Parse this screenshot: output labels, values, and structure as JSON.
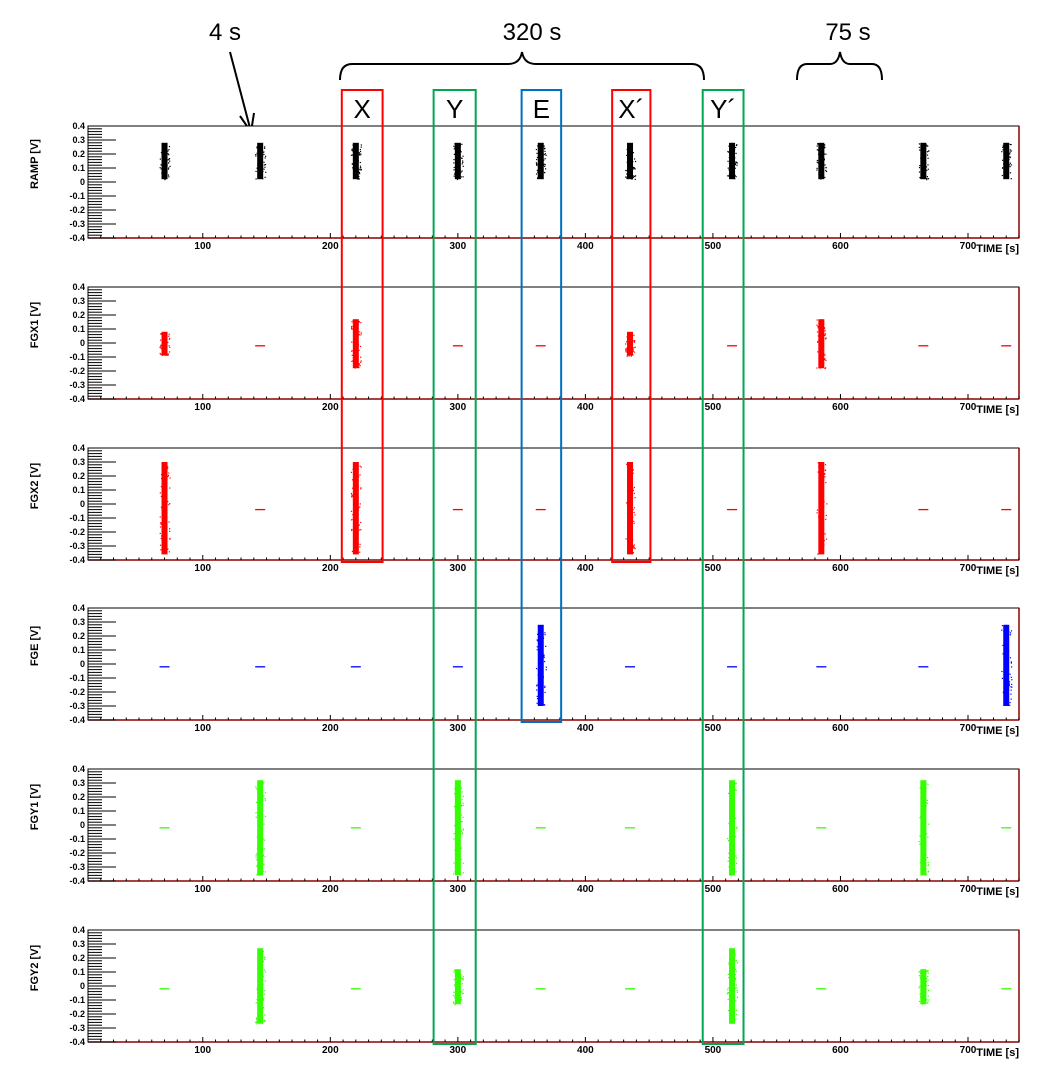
{
  "annotations": {
    "arrow_label": "4 s",
    "brace_long_label": "320 s",
    "brace_short_label": "75 s"
  },
  "boxes": [
    {
      "label": "X",
      "color": "#ff0000",
      "x0": 209,
      "x1": 241,
      "panels": [
        0,
        2
      ]
    },
    {
      "label": "Y",
      "color": "#00a651",
      "x0": 281,
      "x1": 314,
      "panels": [
        0,
        5
      ]
    },
    {
      "label": "E",
      "color": "#0070c0",
      "x0": 350,
      "x1": 381,
      "panels": [
        0,
        3
      ]
    },
    {
      "label": "X´",
      "color": "#ff0000",
      "x0": 421,
      "x1": 451,
      "panels": [
        0,
        2
      ]
    },
    {
      "label": "Y´",
      "color": "#00a651",
      "x0": 492,
      "x1": 524,
      "panels": [
        0,
        5
      ]
    }
  ],
  "chart_data": [
    {
      "type": "scatter",
      "ylabel": "RAMP [V]",
      "xlabel": "TIME [s]",
      "xlim": [
        10,
        740
      ],
      "ylim": [
        -0.4,
        0.4
      ],
      "grid": false,
      "xticks": [
        100,
        200,
        300,
        400,
        500,
        600,
        700
      ],
      "yticks": [
        0.4,
        0.3,
        0.2,
        0.1,
        0,
        -0.1,
        -0.2,
        -0.3,
        -0.4
      ],
      "color": "#000000",
      "bursts": [
        {
          "t": 70,
          "ymin": 0.02,
          "ymax": 0.28
        },
        {
          "t": 145,
          "ymin": 0.02,
          "ymax": 0.28
        },
        {
          "t": 220,
          "ymin": 0.02,
          "ymax": 0.28
        },
        {
          "t": 300,
          "ymin": 0.02,
          "ymax": 0.28
        },
        {
          "t": 365,
          "ymin": 0.02,
          "ymax": 0.28
        },
        {
          "t": 435,
          "ymin": 0.02,
          "ymax": 0.28
        },
        {
          "t": 515,
          "ymin": 0.02,
          "ymax": 0.28
        },
        {
          "t": 585,
          "ymin": 0.02,
          "ymax": 0.28
        },
        {
          "t": 665,
          "ymin": 0.02,
          "ymax": 0.28
        },
        {
          "t": 730,
          "ymin": 0.02,
          "ymax": 0.28
        }
      ]
    },
    {
      "type": "scatter",
      "ylabel": "FGX1 [V]",
      "xlabel": "TIME [s]",
      "xlim": [
        10,
        740
      ],
      "ylim": [
        -0.4,
        0.4
      ],
      "grid": false,
      "xticks": [
        100,
        200,
        300,
        400,
        500,
        600,
        700
      ],
      "yticks": [
        0.4,
        0.3,
        0.2,
        0.1,
        0,
        -0.1,
        -0.2,
        -0.3,
        -0.4
      ],
      "color": "#ff0000",
      "bursts": [
        {
          "t": 70,
          "ymin": -0.09,
          "ymax": 0.08
        },
        {
          "t": 145,
          "ymin": -0.02,
          "ymax": -0.02
        },
        {
          "t": 220,
          "ymin": -0.18,
          "ymax": 0.17
        },
        {
          "t": 300,
          "ymin": -0.02,
          "ymax": -0.02
        },
        {
          "t": 365,
          "ymin": -0.02,
          "ymax": -0.02
        },
        {
          "t": 435,
          "ymin": -0.09,
          "ymax": 0.08
        },
        {
          "t": 515,
          "ymin": -0.02,
          "ymax": -0.02
        },
        {
          "t": 585,
          "ymin": -0.18,
          "ymax": 0.17
        },
        {
          "t": 665,
          "ymin": -0.02,
          "ymax": -0.02
        },
        {
          "t": 730,
          "ymin": -0.02,
          "ymax": -0.02
        }
      ]
    },
    {
      "type": "scatter",
      "ylabel": "FGX2 [V]",
      "xlabel": "TIME [s]",
      "xlim": [
        10,
        740
      ],
      "ylim": [
        -0.4,
        0.4
      ],
      "grid": false,
      "xticks": [
        100,
        200,
        300,
        400,
        500,
        600,
        700
      ],
      "yticks": [
        0.4,
        0.3,
        0.2,
        0.1,
        0,
        -0.1,
        -0.2,
        -0.3,
        -0.4
      ],
      "color": "#ff0000",
      "bursts": [
        {
          "t": 70,
          "ymin": -0.36,
          "ymax": 0.3
        },
        {
          "t": 145,
          "ymin": -0.04,
          "ymax": -0.04
        },
        {
          "t": 220,
          "ymin": -0.36,
          "ymax": 0.3
        },
        {
          "t": 300,
          "ymin": -0.04,
          "ymax": -0.04
        },
        {
          "t": 365,
          "ymin": -0.04,
          "ymax": -0.04
        },
        {
          "t": 435,
          "ymin": -0.36,
          "ymax": 0.3
        },
        {
          "t": 515,
          "ymin": -0.04,
          "ymax": -0.04
        },
        {
          "t": 585,
          "ymin": -0.36,
          "ymax": 0.3
        },
        {
          "t": 665,
          "ymin": -0.04,
          "ymax": -0.04
        },
        {
          "t": 730,
          "ymin": -0.04,
          "ymax": -0.04
        }
      ]
    },
    {
      "type": "scatter",
      "ylabel": "FGE [V]",
      "xlabel": "TIME [s]",
      "xlim": [
        10,
        740
      ],
      "ylim": [
        -0.4,
        0.4
      ],
      "grid": false,
      "xticks": [
        100,
        200,
        300,
        400,
        500,
        600,
        700
      ],
      "yticks": [
        0.4,
        0.3,
        0.2,
        0.1,
        0,
        -0.1,
        -0.2,
        -0.3,
        -0.4
      ],
      "color": "#0000ff",
      "bursts": [
        {
          "t": 70,
          "ymin": -0.02,
          "ymax": -0.02
        },
        {
          "t": 145,
          "ymin": -0.02,
          "ymax": -0.02
        },
        {
          "t": 220,
          "ymin": -0.02,
          "ymax": -0.02
        },
        {
          "t": 300,
          "ymin": -0.02,
          "ymax": -0.02
        },
        {
          "t": 365,
          "ymin": -0.3,
          "ymax": 0.28
        },
        {
          "t": 435,
          "ymin": -0.02,
          "ymax": -0.02
        },
        {
          "t": 515,
          "ymin": -0.02,
          "ymax": -0.02
        },
        {
          "t": 585,
          "ymin": -0.02,
          "ymax": -0.02
        },
        {
          "t": 665,
          "ymin": -0.02,
          "ymax": -0.02
        },
        {
          "t": 730,
          "ymin": -0.3,
          "ymax": 0.28
        }
      ]
    },
    {
      "type": "scatter",
      "ylabel": "FGY1 [V]",
      "xlabel": "TIME [s]",
      "xlim": [
        10,
        740
      ],
      "ylim": [
        -0.4,
        0.4
      ],
      "grid": false,
      "xticks": [
        100,
        200,
        300,
        400,
        500,
        600,
        700
      ],
      "yticks": [
        0.4,
        0.3,
        0.2,
        0.1,
        0,
        -0.1,
        -0.2,
        -0.3,
        -0.4
      ],
      "color": "#33ff00",
      "bursts": [
        {
          "t": 70,
          "ymin": -0.02,
          "ymax": -0.02
        },
        {
          "t": 145,
          "ymin": -0.36,
          "ymax": 0.32
        },
        {
          "t": 220,
          "ymin": -0.02,
          "ymax": -0.02
        },
        {
          "t": 300,
          "ymin": -0.36,
          "ymax": 0.32
        },
        {
          "t": 365,
          "ymin": -0.02,
          "ymax": -0.02
        },
        {
          "t": 435,
          "ymin": -0.02,
          "ymax": -0.02
        },
        {
          "t": 515,
          "ymin": -0.36,
          "ymax": 0.32
        },
        {
          "t": 585,
          "ymin": -0.02,
          "ymax": -0.02
        },
        {
          "t": 665,
          "ymin": -0.36,
          "ymax": 0.32
        },
        {
          "t": 730,
          "ymin": -0.02,
          "ymax": -0.02
        }
      ]
    },
    {
      "type": "scatter",
      "ylabel": "FGY2 [V]",
      "xlabel": "TIME [s]",
      "xlim": [
        10,
        740
      ],
      "ylim": [
        -0.4,
        0.4
      ],
      "grid": false,
      "xticks": [
        100,
        200,
        300,
        400,
        500,
        600,
        700
      ],
      "yticks": [
        0.4,
        0.3,
        0.2,
        0.1,
        0,
        -0.1,
        -0.2,
        -0.3,
        -0.4
      ],
      "color": "#33ff00",
      "bursts": [
        {
          "t": 70,
          "ymin": -0.02,
          "ymax": -0.02
        },
        {
          "t": 145,
          "ymin": -0.27,
          "ymax": 0.27
        },
        {
          "t": 220,
          "ymin": -0.02,
          "ymax": -0.02
        },
        {
          "t": 300,
          "ymin": -0.13,
          "ymax": 0.12
        },
        {
          "t": 365,
          "ymin": -0.02,
          "ymax": -0.02
        },
        {
          "t": 435,
          "ymin": -0.02,
          "ymax": -0.02
        },
        {
          "t": 515,
          "ymin": -0.27,
          "ymax": 0.27
        },
        {
          "t": 585,
          "ymin": -0.02,
          "ymax": -0.02
        },
        {
          "t": 665,
          "ymin": -0.13,
          "ymax": 0.12
        },
        {
          "t": 730,
          "ymin": -0.02,
          "ymax": -0.02
        }
      ]
    }
  ]
}
